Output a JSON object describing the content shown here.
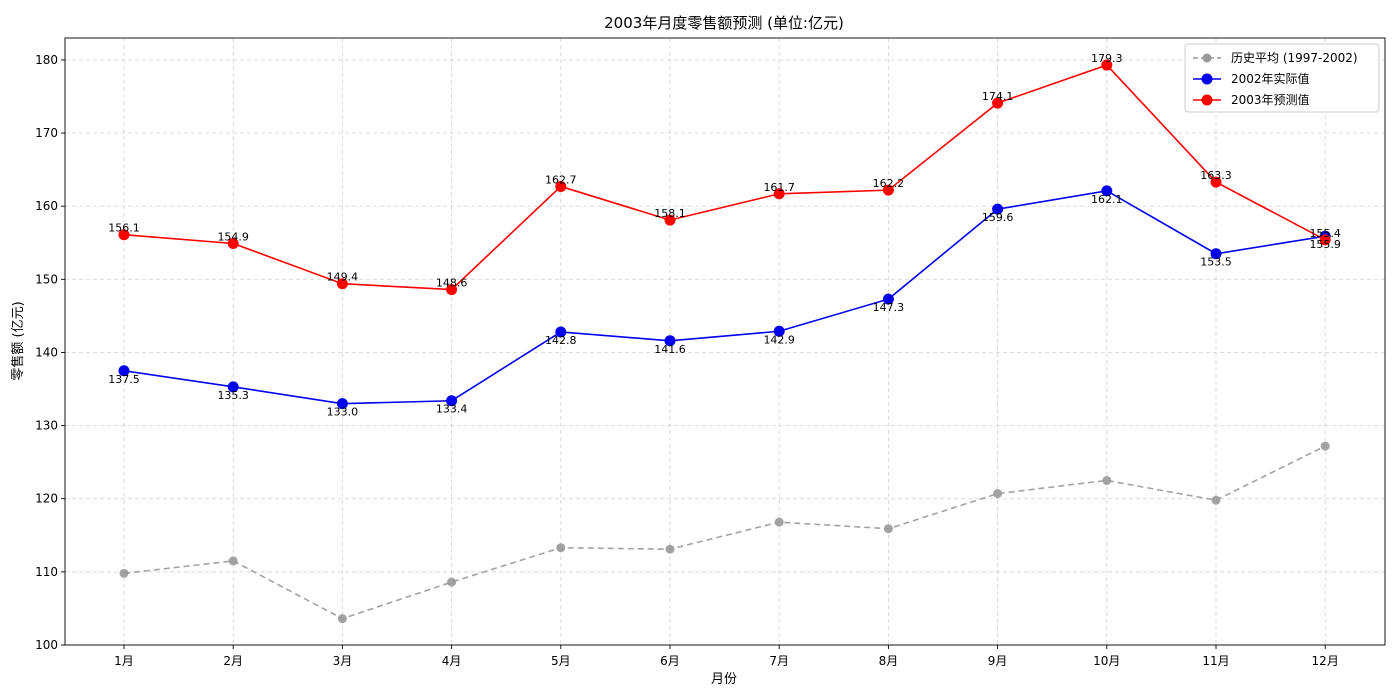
{
  "chart_data": {
    "type": "line",
    "title": "2003年月度零售额预测 (单位:亿元)",
    "xlabel": "月份",
    "ylabel": "零售额 (亿元)",
    "categories": [
      "1月",
      "2月",
      "3月",
      "4月",
      "5月",
      "6月",
      "7月",
      "8月",
      "9月",
      "10月",
      "11月",
      "12月"
    ],
    "ylim": [
      100,
      183
    ],
    "yticks": [
      100,
      110,
      120,
      130,
      140,
      150,
      160,
      170,
      180
    ],
    "grid": true,
    "legend_position": "top-right",
    "series": [
      {
        "name": "历史平均 (1997-2002)",
        "color": "#999999",
        "linestyle": "dashed",
        "values": [
          109.8,
          111.5,
          103.6,
          108.6,
          113.3,
          113.1,
          116.8,
          115.9,
          120.7,
          122.5,
          119.8,
          127.2
        ],
        "show_labels": false
      },
      {
        "name": "2002年实际值",
        "color": "#0000ee",
        "linestyle": "solid",
        "values": [
          137.5,
          135.3,
          133.0,
          133.4,
          142.8,
          141.6,
          142.9,
          147.3,
          159.6,
          162.1,
          153.5,
          155.9
        ],
        "labels": [
          "137.5",
          "135.3",
          "133.0",
          "133.4",
          "142.8",
          "141.6",
          "142.9",
          "147.3",
          "159.6",
          "162.1",
          "153.5",
          "155.9"
        ],
        "show_labels": true,
        "label_position": "below"
      },
      {
        "name": "2003年预测值",
        "color": "#ff0000",
        "linestyle": "solid",
        "values": [
          156.1,
          154.9,
          149.4,
          148.6,
          162.7,
          158.1,
          161.7,
          162.2,
          174.1,
          179.3,
          163.3,
          155.4
        ],
        "labels": [
          "156.1",
          "154.9",
          "149.4",
          "148.6",
          "162.7",
          "158.1",
          "161.7",
          "162.2",
          "174.1",
          "179.3",
          "163.3",
          "155.4"
        ],
        "show_labels": true,
        "label_position": "above"
      }
    ]
  }
}
